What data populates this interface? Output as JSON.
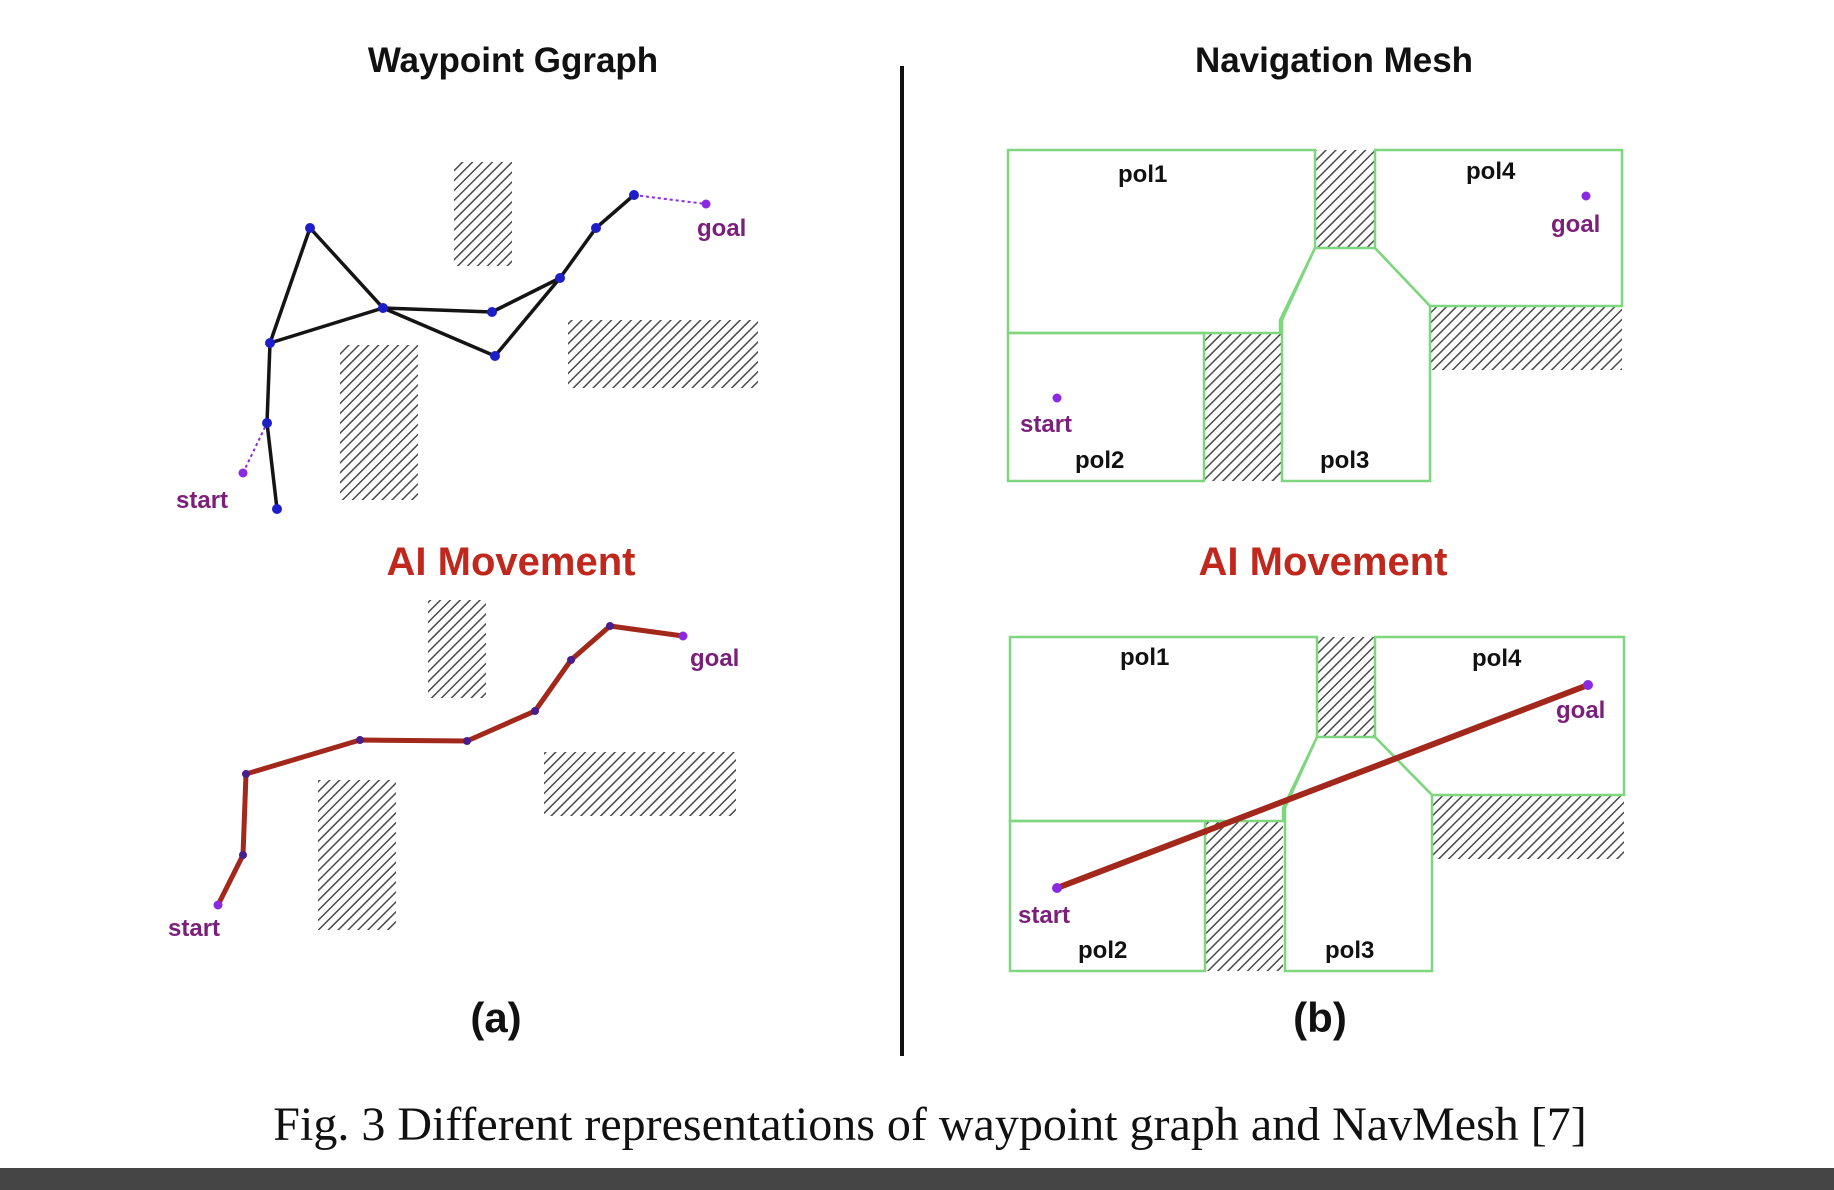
{
  "figure": {
    "caption": "Fig. 3 Different representations of waypoint graph and NavMesh [7]",
    "panel_a": {
      "title": "Waypoint Ggraph",
      "subtitle": "AI Movement",
      "label": "(a)",
      "start_label_top": "start",
      "goal_label_top": "goal",
      "start_label_bottom": "start",
      "goal_label_bottom": "goal"
    },
    "panel_b": {
      "title": "Navigation Mesh",
      "subtitle": "AI Movement",
      "label": "(b)",
      "top": {
        "pol1": "pol1",
        "pol2": "pol2",
        "pol3": "pol3",
        "pol4": "pol4",
        "start": "start",
        "goal": "goal"
      },
      "bottom": {
        "pol1": "pol1",
        "pol2": "pol2",
        "pol3": "pol3",
        "pol4": "pol4",
        "start": "start",
        "goal": "goal"
      }
    }
  },
  "colors": {
    "title": "#111111",
    "subtitle": "#c0281d",
    "label_purple": "#7a1f7a",
    "node": "#1e1ec8",
    "edge": "#141414",
    "path": "#a3281c",
    "mesh": "#7ed67e",
    "hatch": "#505050",
    "divider": "#111111"
  }
}
